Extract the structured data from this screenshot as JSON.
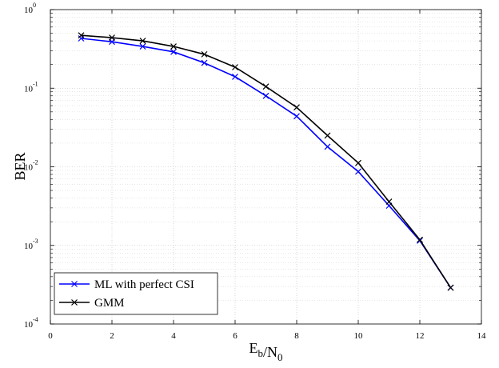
{
  "chart_data": {
    "type": "line",
    "xlabel": "E_b/N_0",
    "ylabel": "BER",
    "xlim": [
      0,
      14
    ],
    "ylim": [
      0.0001,
      1
    ],
    "yscale": "log",
    "grid": true,
    "legend_position": "bottom-left",
    "x_ticks": [
      "0",
      "2",
      "4",
      "6",
      "8",
      "10",
      "12",
      "14"
    ],
    "y_ticks": [
      {
        "base": "10",
        "exp": "-4"
      },
      {
        "base": "10",
        "exp": "-3"
      },
      {
        "base": "10",
        "exp": "-2"
      },
      {
        "base": "10",
        "exp": "-1"
      },
      {
        "base": "10",
        "exp": "0"
      }
    ],
    "x": [
      1,
      2,
      3,
      4,
      5,
      6,
      7,
      8,
      9,
      10,
      11,
      12,
      13
    ],
    "series": [
      {
        "name": "ML with perfect CSI",
        "color": "#0000ff",
        "marker": "x",
        "values": [
          0.43,
          0.39,
          0.34,
          0.29,
          0.21,
          0.14,
          0.08,
          0.044,
          0.018,
          0.0087,
          0.0032,
          0.00115,
          0.00029
        ]
      },
      {
        "name": "GMM",
        "color": "#000000",
        "marker": "x",
        "values": [
          0.47,
          0.44,
          0.4,
          0.34,
          0.27,
          0.185,
          0.105,
          0.057,
          0.025,
          0.0112,
          0.0036,
          0.00118,
          0.00029
        ]
      }
    ]
  }
}
